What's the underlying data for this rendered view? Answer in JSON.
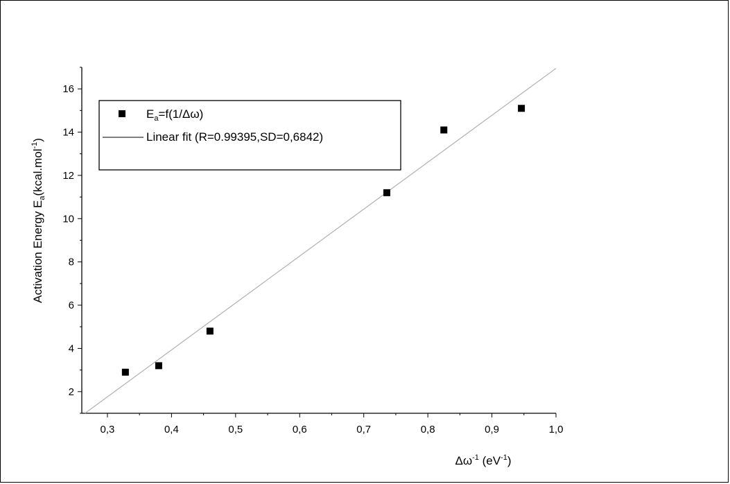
{
  "chart_data": {
    "type": "scatter",
    "x_axis": {
      "label_main": "Δω",
      "label_sup": "-1",
      "label_rest": " (eV",
      "label_sup2": "-1",
      "label_end": ")",
      "range": [
        0.26,
        1.0
      ],
      "ticks": [
        0.3,
        0.4,
        0.5,
        0.6,
        0.7,
        0.8,
        0.9,
        1.0
      ],
      "tick_labels": [
        "0,3",
        "0,4",
        "0,5",
        "0,6",
        "0,7",
        "0,8",
        "0,9",
        "1,0"
      ]
    },
    "y_axis": {
      "label_main": "Activation Energy E",
      "label_sub": "a",
      "label_rest": "(kcal.mol",
      "label_sup": "-1",
      "label_end": ")",
      "range": [
        1,
        17
      ],
      "ticks": [
        2,
        4,
        6,
        8,
        10,
        12,
        14,
        16
      ],
      "tick_labels": [
        "2",
        "4",
        "6",
        "8",
        "10",
        "12",
        "14",
        "16"
      ]
    },
    "series": [
      {
        "type": "scatter",
        "marker": "square",
        "color": "#000000",
        "x": [
          0.328,
          0.38,
          0.46,
          0.736,
          0.825,
          0.946
        ],
        "y": [
          2.9,
          3.2,
          4.8,
          11.2,
          14.1,
          15.1
        ]
      },
      {
        "type": "line",
        "color": "#b0b0b0",
        "x": [
          0.265,
          1.0
        ],
        "y": [
          1.0,
          16.95
        ]
      }
    ],
    "legend": {
      "placement": "top-left",
      "entries": [
        {
          "marker": "square",
          "main": "E",
          "sub": "a",
          "rest": "=f(1/Δω)"
        },
        {
          "marker": "line",
          "text": "Linear fit (R=0.99395,SD=0,6842)"
        }
      ]
    },
    "grid": false
  }
}
